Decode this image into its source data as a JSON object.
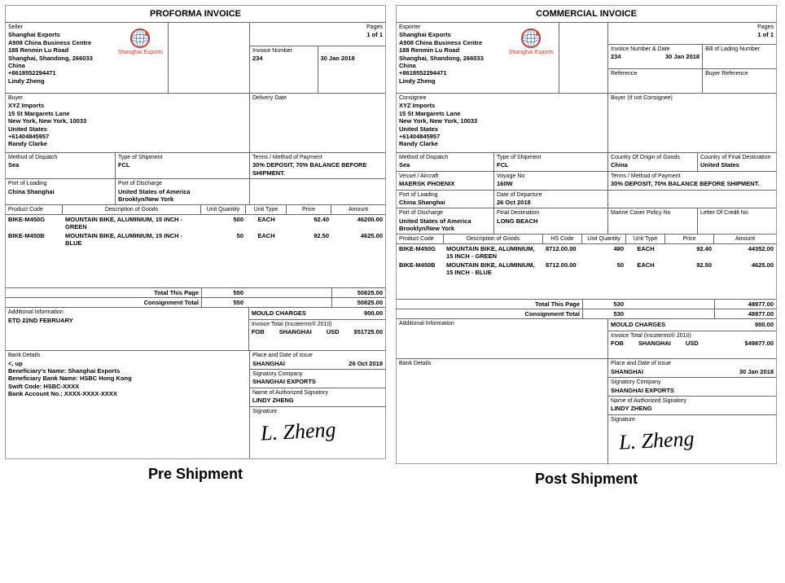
{
  "captions": {
    "left": "Pre Shipment",
    "right": "Post Shipment"
  },
  "logo": {
    "label": "Shanghai Exports",
    "ring_color": "#d32",
    "arrow_color": "#2a5fb0"
  },
  "proforma": {
    "title": "PROFORMA INVOICE",
    "pages_label": "Pages",
    "pages": "1 of 1",
    "seller_label": "Seller",
    "seller": {
      "name": "Shanghai Exports",
      "addr1": "A908 China Business Centre",
      "addr2": "188 Renmin Lu Road",
      "addr3": "Shanghai, Shandong, 266033",
      "country": "China",
      "phone": "+8618552294471",
      "contact": "Lindy Zheng"
    },
    "invoice_number_label": "Invoice Number",
    "invoice_number": "234",
    "invoice_date": "30 Jan 2018",
    "buyer_label": "Buyer",
    "buyer": {
      "name": "XYZ Imports",
      "addr1": "15 St Margarets Lane",
      "addr2": "New York, New York, 10033",
      "country": "United States",
      "phone": "+61404845957",
      "contact": "Randy Clarke"
    },
    "delivery_date_label": "Delivery Date",
    "dispatch_label": "Method of Dispatch",
    "dispatch": "Sea",
    "shipment_type_label": "Type of Shipment",
    "shipment_type": "FCL",
    "terms_label": "Terms / Method of Payment",
    "terms": "30% DEPOSIT, 70% BALANCE BEFORE SHIPMENT.",
    "pol_label": "Port of Loading",
    "pol": "China Shanghai",
    "pod_label": "Port of Discharge",
    "pod_country": "United States of America",
    "pod_city": "Brooklyn/New York",
    "cols": {
      "code": "Product Code",
      "desc": "Description of Goods",
      "qty": "Unit Quantity",
      "utype": "Unit Type",
      "price": "Price",
      "amount": "Amount"
    },
    "items": [
      {
        "code": "BIKE-M450G",
        "desc": "MOUNTAIN BIKE, ALUMINIUM, 15 INCH - GREEN",
        "qty": "500",
        "utype": "EACH",
        "price": "92.40",
        "amount": "46200.00"
      },
      {
        "code": "BIKE-M450B",
        "desc": "MOUNTAIN BIKE, ALUMINIUM, 15 INCH - BLUE",
        "qty": "50",
        "utype": "EACH",
        "price": "92.50",
        "amount": "4625.00"
      }
    ],
    "total_page_label": "Total This Page",
    "total_page_qty": "550",
    "total_page_amount": "50825.00",
    "consignment_label": "Consignment Total",
    "consignment_qty": "550",
    "consignment_amount": "50825.00",
    "addl_label": "Additional Information",
    "addl": "ETD 22ND FEBRUARY",
    "mould_label": "MOULD CHARGES",
    "mould": "900.00",
    "invoice_total_label": "Invoice Total (Incoterms® 2010)",
    "incoterm": "FOB",
    "incoterm_place": "SHANGHAI",
    "currency": "USD",
    "invoice_total": "$51725.00",
    "bank_label": "Bank Details",
    "bank": {
      "l1": "Beneficiary's Name:  Shanghai Exports",
      "l2": "Beneficiary Bank Name:  HSBC Hong Kong",
      "l3": "Swift Code:  HSBC-XXXX",
      "l4": "Bank Account No.:  XXXX-XXXX-XXXX"
    },
    "place_date_label": "Place and Date of issue",
    "place": "SHANGHAI",
    "issue_date": "26 Oct 2018",
    "sig_company_label": "Signatory Company",
    "sig_company": "SHANGHAI EXPORTS",
    "sig_name_label": "Name of Authorized Signatory",
    "sig_name": "LINDY  ZHENG",
    "signature_label": "Signature",
    "signature": "L. Zheng"
  },
  "commercial": {
    "title": "COMMERCIAL INVOICE",
    "pages_label": "Pages",
    "pages": "1 of 1",
    "exporter_label": "Exporter",
    "exporter": {
      "name": "Shanghai Exports",
      "addr1": "A908 China Business Centre",
      "addr2": "188 Renmin Lu Road",
      "addr3": "Shanghai, Shandong, 266033",
      "country": "China",
      "phone": "+8618552294471",
      "contact": "Lindy Zheng"
    },
    "invnum_label": "Invoice Number & Date",
    "invnum": "234",
    "invdate": "30 Jan 2018",
    "bol_label": "Bill of Lading Number",
    "ref_label": "Reference",
    "buyer_ref_label": "Buyer Reference",
    "consignee_label": "Consignee",
    "consignee": {
      "name": "XYZ Imports",
      "addr1": "15 St Margarets Lane",
      "addr2": "New York, New York, 10033",
      "country": "United States",
      "phone": "+61404845957",
      "contact": "Randy Clarke"
    },
    "buyer_not_cons_label": "Buyer (If not Consignee)",
    "dispatch_label": "Method of Dispatch",
    "dispatch": "Sea",
    "shipment_type_label": "Type of Shipment",
    "shipment_type": "FCL",
    "coo_label": "Country Of Origin of Goods",
    "coo": "China",
    "cfd_label": "Country of Final Destination",
    "cfd": "United States",
    "vessel_label": "Vessel / Aircraft",
    "vessel": "MAERSK PHOENIX",
    "voyage_label": "Voyage No",
    "voyage": "160W",
    "terms_label": "Terms / Method of Payment",
    "terms": "30% DEPOSIT, 70% BALANCE BEFORE SHIPMENT.",
    "pol_label": "Port of Loading",
    "pol": "China Shanghai",
    "departure_label": "Date of Departure",
    "departure": "26 Oct 2018",
    "pod_label": "Port of Discharge",
    "pod_country": "United States of America",
    "pod_city": "Brooklyn/New York",
    "fdest_label": "Final Destination",
    "fdest": "LONG BEACH",
    "marine_label": "Marine Cover Policy No",
    "lc_label": "Letter Of Credit No",
    "cols": {
      "code": "Product Code",
      "desc": "Description of Goods",
      "hs": "HS Code",
      "qty": "Unit Quantity",
      "utype": "Unit Type",
      "price": "Price",
      "amount": "Amount"
    },
    "items": [
      {
        "code": "BIKE-M450G",
        "desc": "MOUNTAIN BIKE, ALUMINIUM, 15 INCH - GREEN",
        "hs": "8712.00.00",
        "qty": "480",
        "utype": "EACH",
        "price": "92.40",
        "amount": "44352.00"
      },
      {
        "code": "BIKE-M450B",
        "desc": "MOUNTAIN BIKE, ALUMINIUM, 15 INCH - BLUE",
        "hs": "8712.00.00",
        "qty": "50",
        "utype": "EACH",
        "price": "92.50",
        "amount": "4625.00"
      }
    ],
    "total_page_label": "Total This Page",
    "total_page_qty": "530",
    "total_page_amount": "48977.00",
    "consignment_label": "Consignment Total",
    "consignment_qty": "530",
    "consignment_amount": "48977.00",
    "addl_label": "Additional Information",
    "mould_label": "MOULD CHARGES",
    "mould": "900.00",
    "invoice_total_label": "Invoice Total (Incoterms® 2010)",
    "incoterm": "FOB",
    "incoterm_place": "SHANGHAI",
    "currency": "USD",
    "invoice_total": "$49877.00",
    "bank_label": "Bank Details",
    "place_date_label": "Place and Date of issue",
    "place": "SHANGHAI",
    "issue_date": "30 Jan 2018",
    "sig_company_label": "Signatory Company",
    "sig_company": "SHANGHAI EXPORTS",
    "sig_name_label": "Name of Authorized Signatory",
    "sig_name": "LINDY  ZHENG",
    "signature_label": "Signature",
    "signature": "L. Zheng"
  }
}
